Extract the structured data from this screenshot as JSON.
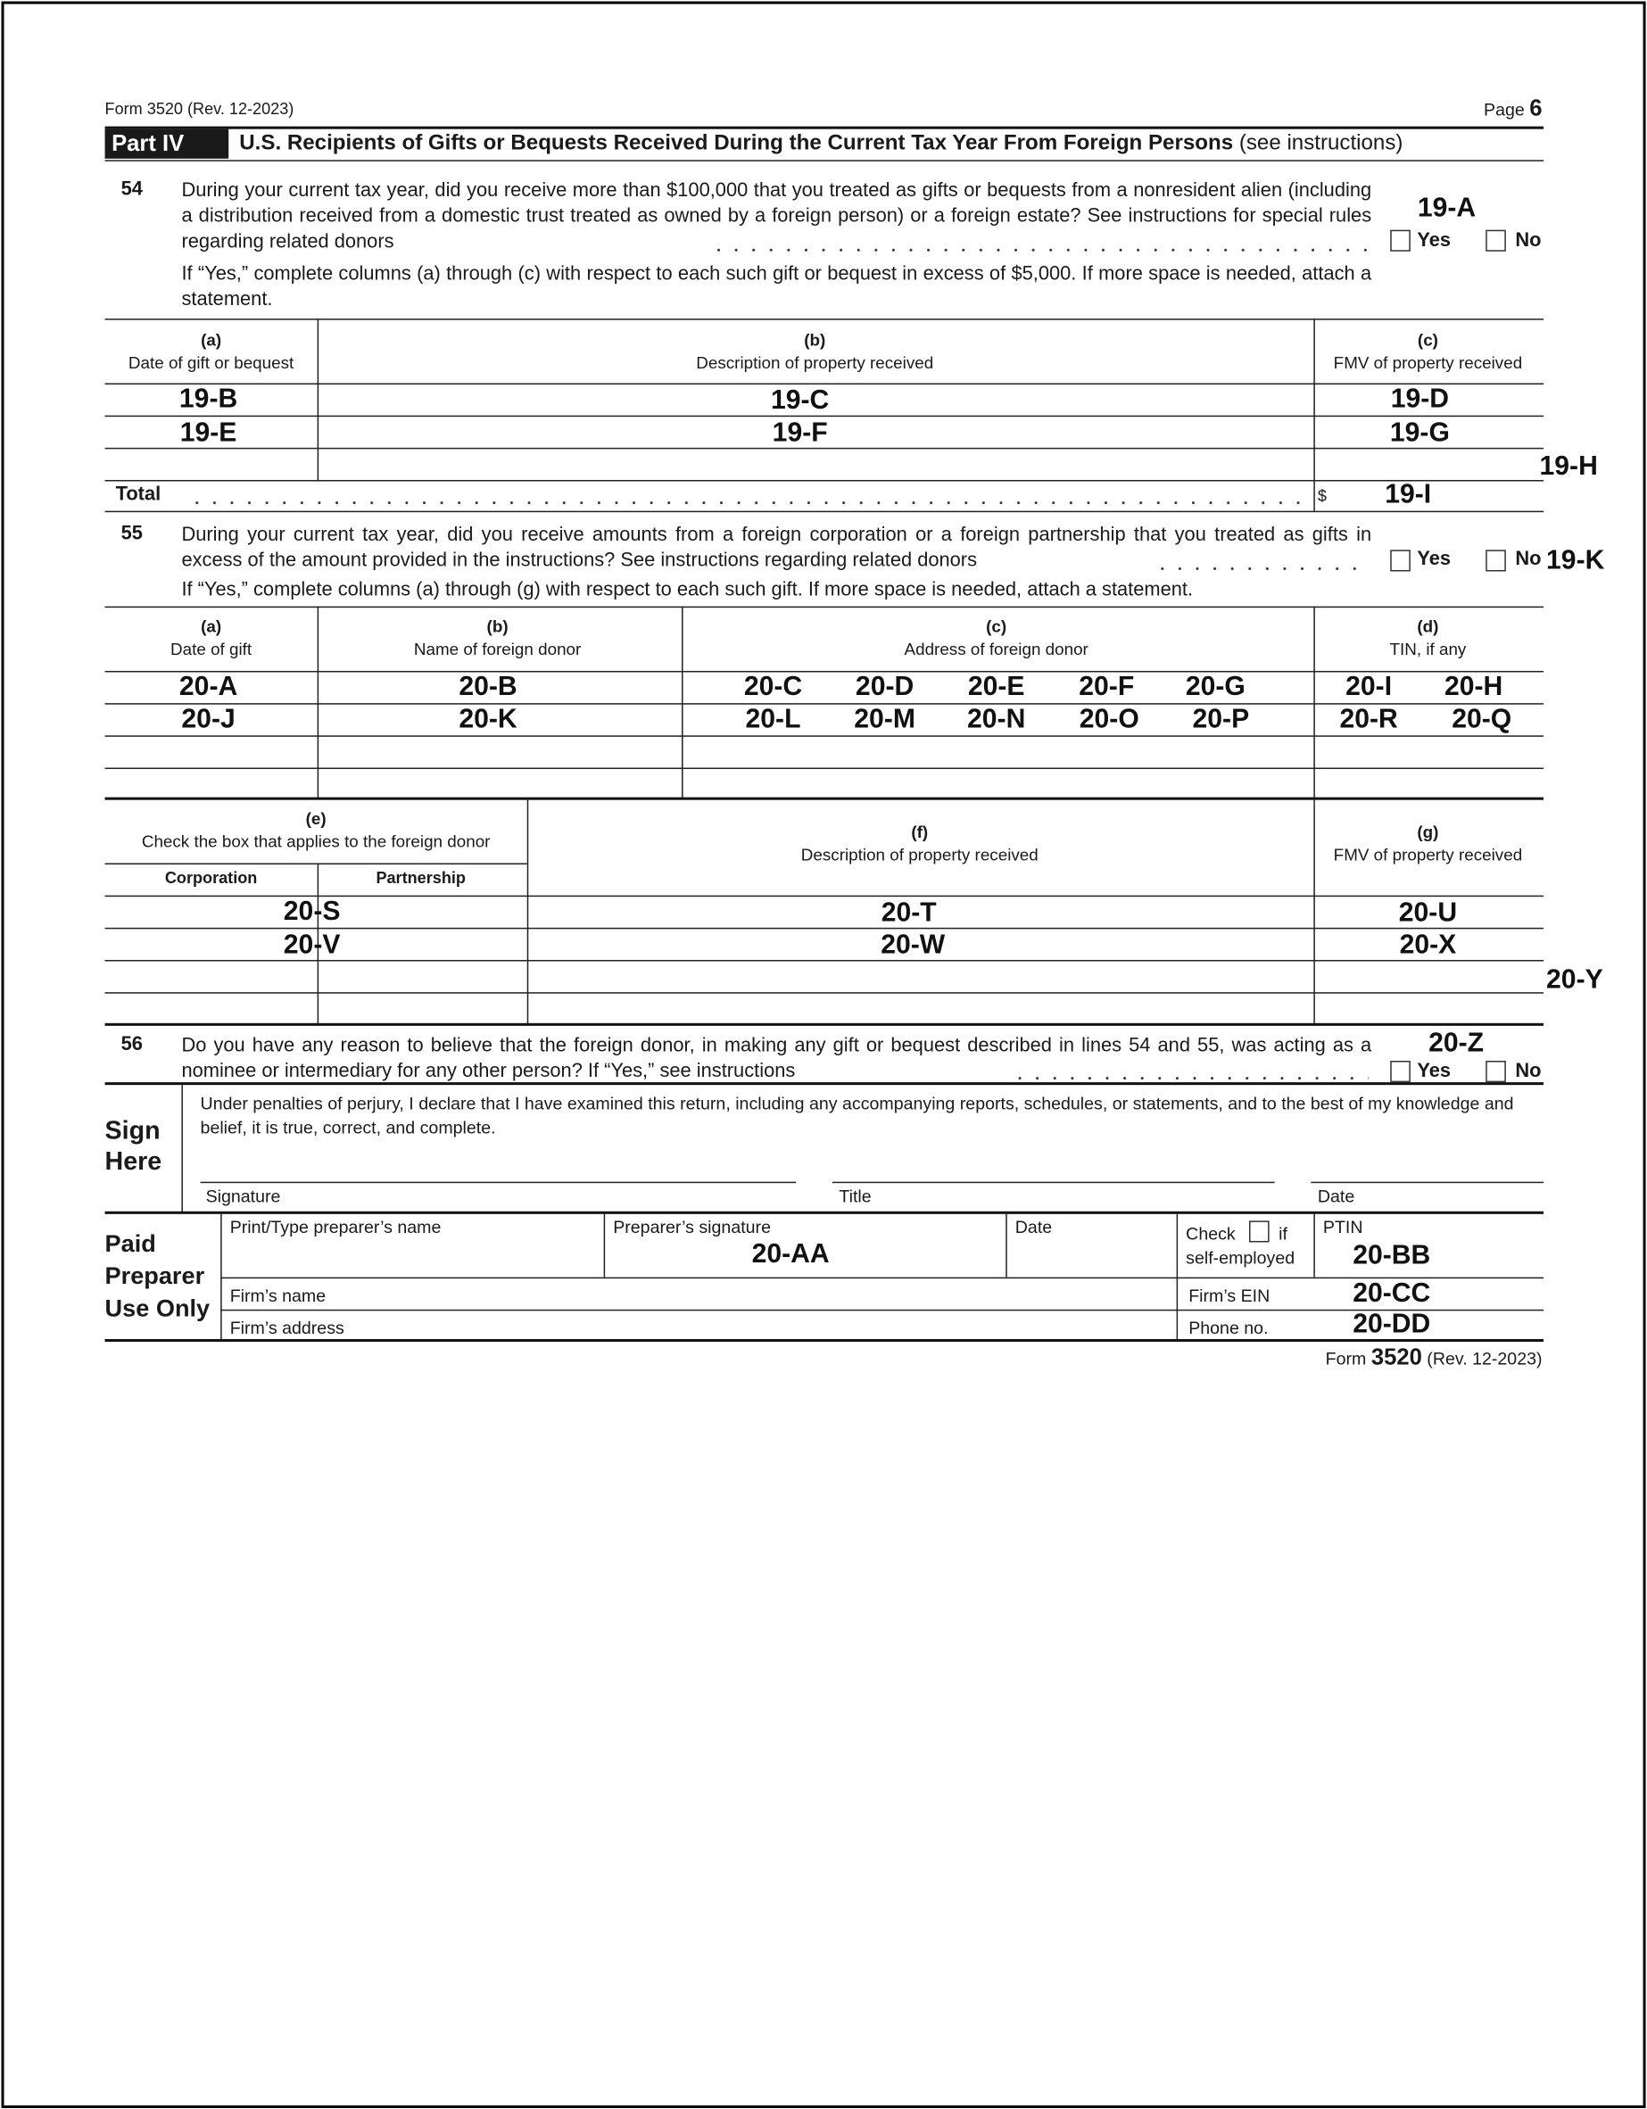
{
  "header": {
    "form_id": "Form 3520 (Rev. 12-2023)",
    "page_label": "Page",
    "page_number": "6"
  },
  "part": {
    "label": "Part IV",
    "title": "U.S. Recipients of Gifts or Bequests Received During the Current Tax Year From Foreign Persons",
    "title_note": "(see instructions)"
  },
  "q54": {
    "number": "54",
    "text": "During your current tax year, did you receive more than $100,000 that you treated as gifts or bequests from a nonresident alien (including a distribution received from a domestic trust treated as owned by a foreign person) or a foreign estate? See instructions for special rules regarding related donors",
    "yes": "Yes",
    "no": "No",
    "field": "19-A",
    "followup": "If “Yes,” complete columns (a) through (c) with respect to each such gift or bequest in excess of $5,000. If more space is needed, attach a statement."
  },
  "table54": {
    "columns": [
      {
        "letter": "(a)",
        "label": "Date of gift or bequest"
      },
      {
        "letter": "(b)",
        "label": "Description of property received"
      },
      {
        "letter": "(c)",
        "label": "FMV of property received"
      }
    ],
    "rows": [
      [
        "19-B",
        "19-C",
        "19-D"
      ],
      [
        "19-E",
        "19-F",
        "19-G"
      ],
      [
        "",
        "",
        ""
      ]
    ],
    "side_field": "19-H",
    "total_label": "Total",
    "currency": "$",
    "total_field": "19-I"
  },
  "q55": {
    "number": "55",
    "text": "During your current tax year, did you receive amounts from a foreign corporation or a foreign partnership that you treated as gifts in excess of the amount provided in the instructions? See instructions regarding related donors",
    "yes": "Yes",
    "no": "No",
    "field": "19-K",
    "followup": "If “Yes,” complete columns (a) through (g) with respect to each such gift. If more space is needed, attach a statement."
  },
  "table55a": {
    "columns": [
      {
        "letter": "(a)",
        "label": "Date of gift"
      },
      {
        "letter": "(b)",
        "label": "Name of foreign donor"
      },
      {
        "letter": "(c)",
        "label": "Address of foreign donor"
      },
      {
        "letter": "(d)",
        "label": "TIN, if any"
      }
    ],
    "rows": [
      {
        "date": "20-A",
        "name": "20-B",
        "address": [
          "20-C",
          "20-D",
          "20-E",
          "20-F",
          "20-G"
        ],
        "tin": [
          "20-I",
          "20-H"
        ]
      },
      {
        "date": "20-J",
        "name": "20-K",
        "address": [
          "20-L",
          "20-M",
          "20-N",
          "20-O",
          "20-P"
        ],
        "tin": [
          "20-R",
          "20-Q"
        ]
      }
    ]
  },
  "table55b": {
    "columns": [
      {
        "letter": "(e)",
        "label": "Check the box that applies to the foreign donor",
        "sub": [
          "Corporation",
          "Partnership"
        ]
      },
      {
        "letter": "(f)",
        "label": "Description of property received"
      },
      {
        "letter": "(g)",
        "label": "FMV of property received"
      }
    ],
    "rows": [
      [
        "20-S",
        "20-T",
        "20-U"
      ],
      [
        "20-V",
        "20-W",
        "20-X"
      ]
    ],
    "side_field": "20-Y"
  },
  "q56": {
    "number": "56",
    "text": "Do you have any reason to believe that the foreign donor, in making any gift or bequest described in lines 54 and 55, was acting as a nominee or intermediary for any other person? If “Yes,” see instructions",
    "yes": "Yes",
    "no": "No",
    "field": "20-Z"
  },
  "sign": {
    "heading_1": "Sign",
    "heading_2": "Here",
    "declaration": "Under penalties of perjury, I declare that I have examined this return, including any accompanying reports, schedules, or statements, and to the best of my knowledge and belief, it is true, correct, and complete.",
    "signature": "Signature",
    "title": "Title",
    "date": "Date"
  },
  "preparer": {
    "heading_1": "Paid",
    "heading_2": "Preparer",
    "heading_3": "Use Only",
    "name_label": "Print/Type preparer’s name",
    "signature_label": "Preparer’s signature",
    "signature_field": "20-AA",
    "date_label": "Date",
    "check_label": "Check",
    "if_label": "if",
    "self_employed": "self-employed",
    "ptin_label": "PTIN",
    "ptin_field": "20-BB",
    "firm_name": "Firm’s name",
    "firm_ein": "Firm’s EIN",
    "firm_ein_field": "20-CC",
    "firm_address": "Firm’s address",
    "phone": "Phone no.",
    "phone_field": "20-DD"
  },
  "footer": {
    "form_word": "Form",
    "form_number": "3520",
    "rev": "(Rev. 12-2023)"
  }
}
